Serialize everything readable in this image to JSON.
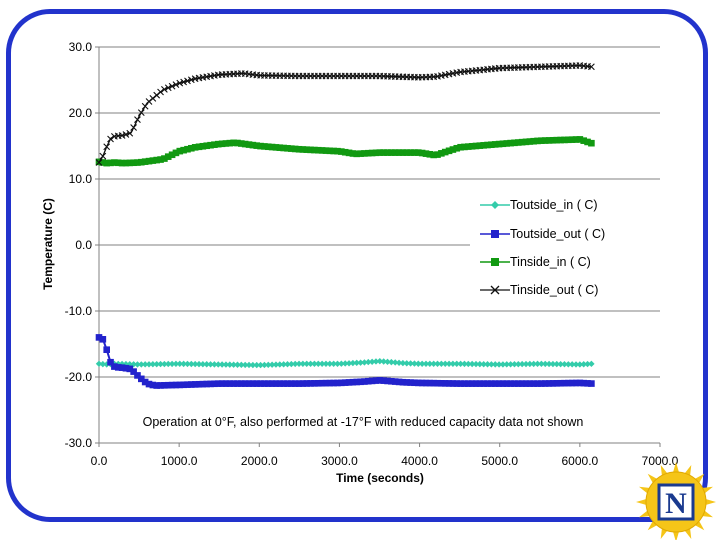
{
  "chart_data": {
    "type": "line",
    "title": "",
    "xlabel": "Time (seconds)",
    "ylabel": "Temperature (C)",
    "xlim": [
      0,
      7000
    ],
    "ylim": [
      -30,
      30
    ],
    "x_ticks": [
      0,
      1000,
      2000,
      3000,
      4000,
      5000,
      6000,
      7000
    ],
    "x_tick_labels": [
      "0.0",
      "1000.0",
      "2000.0",
      "3000.0",
      "4000.0",
      "5000.0",
      "6000.0",
      "7000.0"
    ],
    "y_ticks": [
      30,
      20,
      10,
      0,
      -10,
      -20,
      -30
    ],
    "y_tick_labels": [
      "30.0",
      "20.0",
      "10.0",
      "0.0",
      "-10.0",
      "-20.0",
      "-30.0"
    ],
    "grid": "horizontal",
    "legend_position": "right",
    "annotation": "Operation at 0°F, also performed at -17°F with reduced capacity data not shown",
    "series": [
      {
        "name": "Toutside_in ( C)",
        "color": "#33ccaa",
        "marker": "diamond",
        "x": [
          0,
          100,
          200,
          500,
          1000,
          1500,
          2000,
          2500,
          3000,
          3300,
          3500,
          3800,
          4000,
          4500,
          5000,
          5500,
          6000,
          6150
        ],
        "values": [
          -18.0,
          -18.1,
          -18.0,
          -18.1,
          -18.0,
          -18.1,
          -18.2,
          -18.0,
          -18.0,
          -17.8,
          -17.6,
          -17.9,
          -18.0,
          -18.0,
          -18.1,
          -18.0,
          -18.1,
          -18.0
        ]
      },
      {
        "name": "Toutside_out ( C)",
        "color": "#2222cc",
        "marker": "square",
        "x": [
          0,
          50,
          100,
          150,
          200,
          300,
          400,
          500,
          600,
          700,
          1000,
          1500,
          2000,
          2500,
          3000,
          3300,
          3500,
          3800,
          4000,
          4500,
          5000,
          5500,
          6000,
          6150
        ],
        "values": [
          -14.0,
          -14.3,
          -16.0,
          -18.0,
          -18.5,
          -18.6,
          -18.8,
          -20.0,
          -21.0,
          -21.3,
          -21.2,
          -21.0,
          -21.0,
          -21.0,
          -20.9,
          -20.7,
          -20.5,
          -20.8,
          -20.9,
          -21.0,
          -21.0,
          -21.0,
          -20.9,
          -21.0
        ]
      },
      {
        "name": "Tinside_in ( C)",
        "color": "#119911",
        "marker": "square",
        "x": [
          0,
          100,
          200,
          300,
          500,
          800,
          1000,
          1200,
          1500,
          1700,
          2000,
          2500,
          3000,
          3200,
          3500,
          4000,
          4200,
          4500,
          5000,
          5500,
          6000,
          6150
        ],
        "values": [
          12.6,
          12.4,
          12.5,
          12.4,
          12.5,
          13.0,
          14.2,
          14.8,
          15.3,
          15.5,
          15.0,
          14.5,
          14.2,
          13.8,
          14.0,
          14.0,
          13.6,
          14.8,
          15.3,
          15.8,
          16.0,
          15.4
        ]
      },
      {
        "name": "Tinside_out ( C)",
        "color": "#111111",
        "marker": "x",
        "x": [
          0,
          50,
          100,
          150,
          200,
          300,
          400,
          500,
          600,
          700,
          800,
          1000,
          1200,
          1500,
          1800,
          2000,
          2500,
          3000,
          3500,
          4000,
          4200,
          4500,
          5000,
          5500,
          6000,
          6150
        ],
        "values": [
          12.5,
          13.5,
          15.0,
          16.2,
          16.5,
          16.6,
          17.0,
          19.5,
          21.5,
          22.5,
          23.5,
          24.5,
          25.2,
          25.8,
          26.0,
          25.7,
          25.6,
          25.6,
          25.6,
          25.4,
          25.5,
          26.2,
          26.8,
          27.0,
          27.2,
          27.0
        ]
      }
    ]
  },
  "logo": {
    "label": "N"
  }
}
